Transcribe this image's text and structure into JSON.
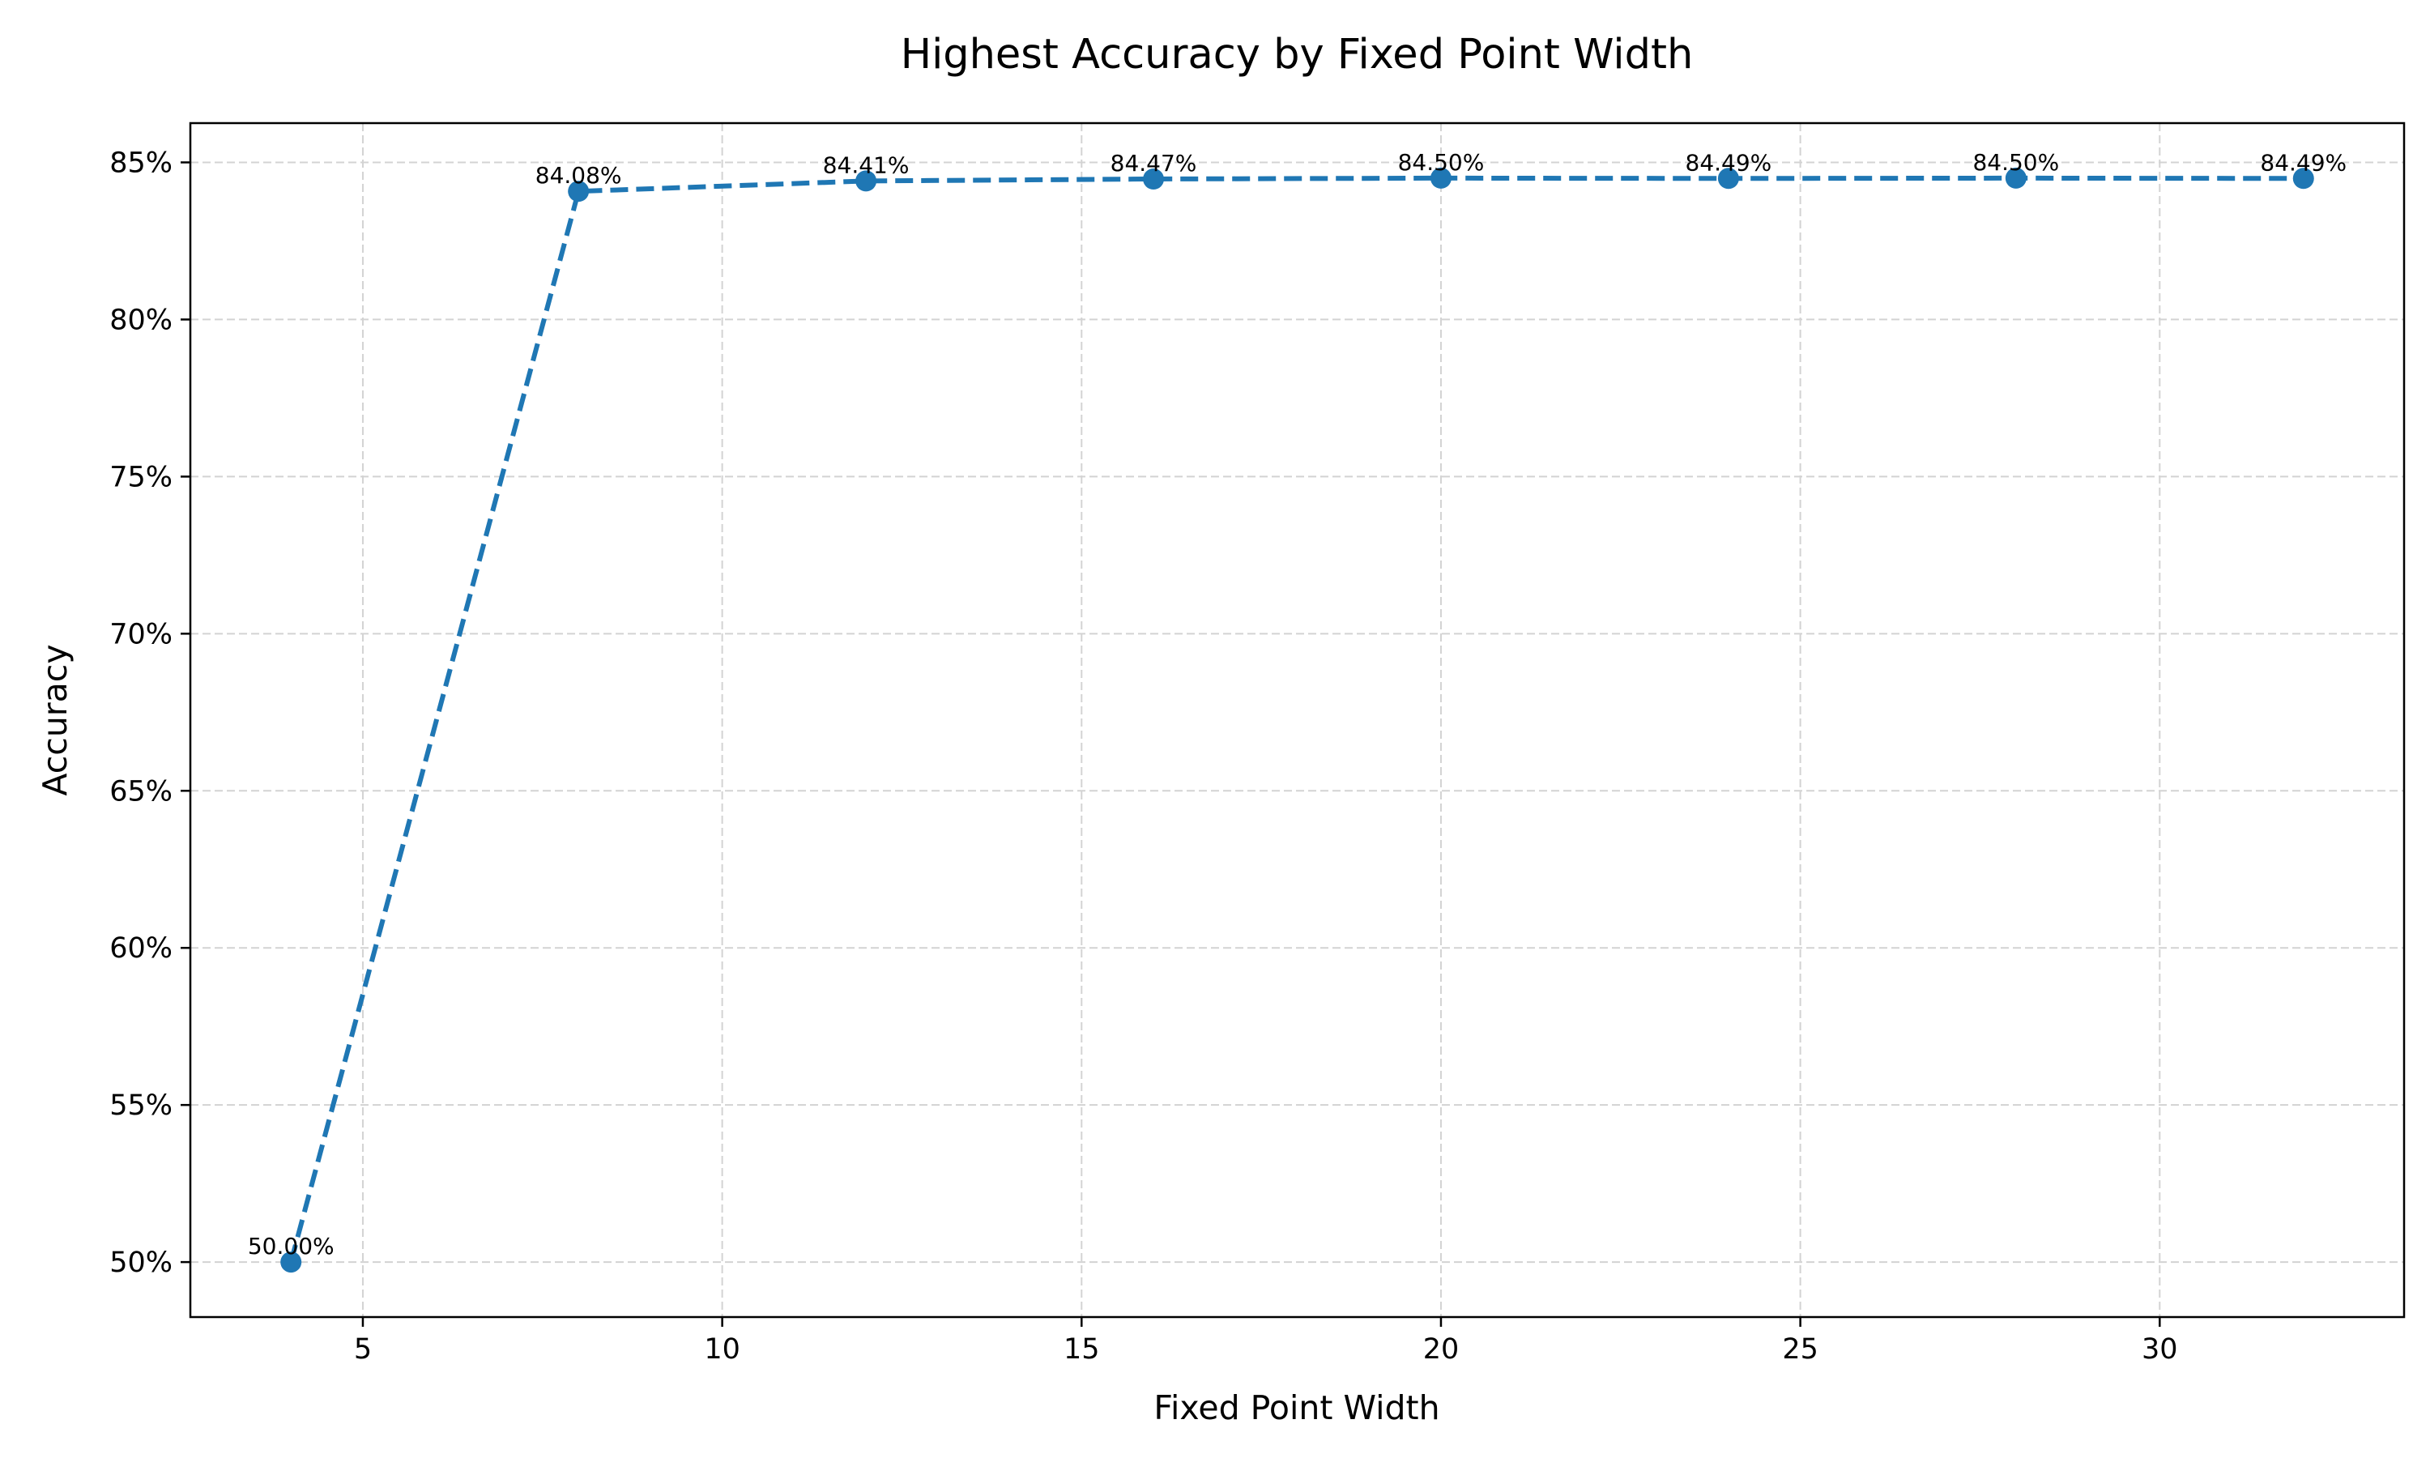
{
  "chart_data": {
    "type": "line",
    "title": "Highest Accuracy by Fixed Point Width",
    "xlabel": "Fixed Point Width",
    "ylabel": "Accuracy",
    "x": [
      4,
      8,
      12,
      16,
      20,
      24,
      28,
      32
    ],
    "series": [
      {
        "values": [
          50.0,
          84.08,
          84.41,
          84.47,
          84.5,
          84.49,
          84.5,
          84.49
        ],
        "data_labels": [
          "50.00%",
          "84.08%",
          "84.41%",
          "84.47%",
          "84.50%",
          "84.49%",
          "84.50%",
          "84.49%"
        ],
        "line_style": "dashed",
        "marker": "circle"
      }
    ],
    "xlim": [
      2.6,
      33.4
    ],
    "ylim": [
      48.25,
      86.25
    ],
    "xticks": [
      5,
      10,
      15,
      20,
      25,
      30
    ],
    "xtick_labels": [
      "5",
      "10",
      "15",
      "20",
      "25",
      "30"
    ],
    "yticks": [
      50,
      55,
      60,
      65,
      70,
      75,
      80,
      85
    ],
    "ytick_labels": [
      "50%",
      "55%",
      "60%",
      "65%",
      "70%",
      "75%",
      "80%",
      "85%"
    ],
    "grid": true,
    "grid_style": "dashed",
    "legend": "none",
    "colors": {
      "series": "#1f77b4",
      "grid": "#d3d3d3",
      "axes": "#000000"
    }
  }
}
